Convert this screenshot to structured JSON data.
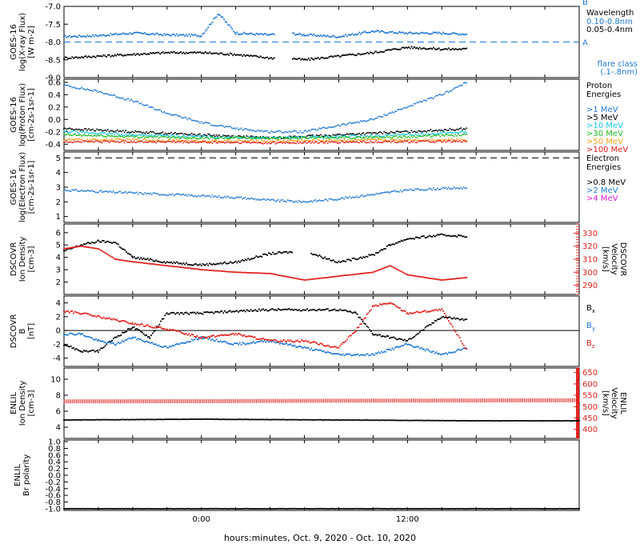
{
  "colors": {
    "black": "#000000",
    "blue": "#1f77d4",
    "cyan": "#18c6e6",
    "green": "#22bb22",
    "orange": "#f0a020",
    "red": "#e0201c",
    "magenta": "#e020e0"
  },
  "xaxis": {
    "title": "hours:minutes, Oct.  9, 2020 - Oct. 10, 2020",
    "tick_labels": [
      "0:00",
      "12:00"
    ],
    "range_hours": [
      -8,
      22
    ],
    "label_hours": [
      0,
      12
    ]
  },
  "chart_data": [
    {
      "type": "line",
      "id": "xray",
      "ylabel": [
        "GOES-16",
        "log(X-ray Flux)",
        "[W m-2]"
      ],
      "ylim": [
        -9.0,
        -7.0
      ],
      "yticks": [
        -9.0,
        -8.5,
        -8.0,
        -7.5,
        -7.0
      ],
      "ytick_labels": [
        "-9.0",
        "-8.5",
        "-8.0",
        "-7.5",
        "-7.0"
      ],
      "right_markers": {
        "B": -7.0,
        "A": -8.0
      },
      "legend_title": "Wavelength",
      "legend": [
        {
          "label": "0.10-0.8nm",
          "color": "#1f77d4"
        },
        {
          "label": "0.05-0.4nm",
          "color": "#000000"
        }
      ],
      "note": [
        "flare class",
        "(.1-.8nm)"
      ],
      "series": [
        {
          "name": "0.10-0.8nm",
          "color": "#1f77d4",
          "x": [
            -8,
            -6,
            -4,
            -2,
            0,
            1,
            2,
            4,
            5,
            6,
            8,
            10,
            12,
            14,
            15.5
          ],
          "y": [
            -7.85,
            -7.82,
            -7.75,
            -7.8,
            -7.82,
            -7.2,
            -7.75,
            -7.8,
            -7.75,
            -7.8,
            -7.85,
            -7.7,
            -7.75,
            -7.75,
            -7.78
          ]
        },
        {
          "name": "0.05-0.4nm",
          "color": "#000000",
          "x": [
            -8,
            -6,
            -4,
            -2,
            0,
            2,
            4,
            5,
            6,
            8,
            10,
            12,
            14,
            15.5
          ],
          "y": [
            -8.45,
            -8.4,
            -8.35,
            -8.3,
            -8.3,
            -8.35,
            -8.45,
            -8.45,
            -8.5,
            -8.4,
            -8.3,
            -8.15,
            -8.2,
            -8.2
          ]
        }
      ]
    },
    {
      "type": "scatter",
      "id": "proton",
      "ylabel": [
        "GOES-16",
        "log(Proton Flux)",
        "[cm-2s-1sr-1]"
      ],
      "ylim": [
        -0.5,
        0.65
      ],
      "yticks": [
        -0.4,
        -0.2,
        0.0,
        0.2,
        0.4,
        0.6
      ],
      "ytick_labels": [
        "-0.4",
        "-0.2",
        "0.0",
        "0.2",
        "0.4",
        "0.6"
      ],
      "legend_title": [
        "Proton",
        "Energies"
      ],
      "legend": [
        {
          "label": ">1 MeV",
          "color": "#1f77d4"
        },
        {
          "label": ">5 MeV",
          "color": "#000000"
        },
        {
          "label": ">10 MeV",
          "color": "#18c6e6"
        },
        {
          "label": ">30 MeV",
          "color": "#22bb22"
        },
        {
          "label": ">50 MeV",
          "color": "#f0a020"
        },
        {
          "label": ">100 MeV",
          "color": "#e0201c"
        }
      ],
      "series": [
        {
          "name": ">1 MeV",
          "color": "#1f77d4",
          "x": [
            -8,
            -6,
            -4,
            -2,
            0,
            2,
            4,
            6,
            8,
            10,
            12,
            14,
            15.5
          ],
          "y": [
            0.55,
            0.45,
            0.3,
            0.1,
            -0.05,
            -0.15,
            -0.2,
            -0.2,
            -0.1,
            0.0,
            0.2,
            0.4,
            0.6
          ]
        },
        {
          "name": ">5 MeV",
          "color": "#000000",
          "x": [
            -8,
            -4,
            0,
            4,
            8,
            12,
            15.5
          ],
          "y": [
            -0.15,
            -0.2,
            -0.25,
            -0.3,
            -0.25,
            -0.2,
            -0.15
          ]
        },
        {
          "name": ">10 MeV",
          "color": "#18c6e6",
          "x": [
            -8,
            -4,
            0,
            4,
            8,
            12,
            15.5
          ],
          "y": [
            -0.2,
            -0.25,
            -0.28,
            -0.3,
            -0.28,
            -0.25,
            -0.2
          ]
        },
        {
          "name": ">30 MeV",
          "color": "#22bb22",
          "x": [
            -8,
            -4,
            0,
            4,
            8,
            12,
            15.5
          ],
          "y": [
            -0.25,
            -0.28,
            -0.3,
            -0.3,
            -0.3,
            -0.28,
            -0.25
          ]
        },
        {
          "name": ">50 MeV",
          "color": "#f0a020",
          "x": [
            -8,
            -4,
            0,
            4,
            8,
            12,
            15.5
          ],
          "y": [
            -0.33,
            -0.33,
            -0.35,
            -0.35,
            -0.34,
            -0.33,
            -0.33
          ]
        },
        {
          "name": ">100 MeV",
          "color": "#e0201c",
          "x": [
            -8,
            -4,
            0,
            4,
            8,
            12,
            15.5
          ],
          "y": [
            -0.36,
            -0.36,
            -0.37,
            -0.38,
            -0.37,
            -0.36,
            -0.36
          ]
        }
      ]
    },
    {
      "type": "scatter",
      "id": "electron",
      "ylabel": [
        "GOES-16",
        "log(Electron Flux)",
        "[cm-2s-1sr-1]"
      ],
      "ylim": [
        0.6,
        5.4
      ],
      "yticks": [
        1,
        2,
        3,
        4,
        5
      ],
      "ytick_labels": [
        "1",
        "2",
        "3",
        "4",
        "5"
      ],
      "threshold": 5.0,
      "legend_title": [
        "Electron",
        "Energies"
      ],
      "legend": [
        {
          "label": ">0.8 MeV",
          "color": "#000000"
        },
        {
          "label": ">2 MeV",
          "color": "#1f77d4"
        },
        {
          "label": ">4 MeV",
          "color": "#e020e0"
        }
      ],
      "series": [
        {
          "name": ">2 MeV",
          "color": "#1f77d4",
          "x": [
            -8,
            -6,
            -4,
            -2,
            0,
            2,
            4,
            6,
            8,
            10,
            12,
            14,
            15.5
          ],
          "y": [
            2.8,
            2.7,
            2.6,
            2.5,
            2.4,
            2.3,
            2.1,
            2.0,
            2.2,
            2.5,
            2.8,
            2.9,
            2.95
          ]
        }
      ]
    },
    {
      "type": "line",
      "id": "dscovr_density",
      "ylabel": [
        "DSCOVR",
        "Ion Density",
        "[cm-3]"
      ],
      "ylim": [
        1,
        6.7
      ],
      "yticks": [
        2,
        3,
        4,
        5,
        6
      ],
      "ytick_labels": [
        "2",
        "3",
        "4",
        "5",
        "6"
      ],
      "y2label": [
        "DSCOVR",
        "Velocity",
        "[km/s]"
      ],
      "y2lim": [
        283,
        337
      ],
      "y2ticks": [
        290,
        300,
        310,
        320,
        330
      ],
      "y2tick_labels": [
        "290",
        "300",
        "310",
        "320",
        "330"
      ],
      "series": [
        {
          "name": "Density",
          "color": "#000000",
          "x": [
            -8,
            -7,
            -6,
            -5,
            -4,
            -2,
            0,
            2,
            4,
            6,
            8,
            10,
            11,
            12,
            14,
            15.5
          ],
          "y": [
            4.5,
            5.0,
            5.3,
            5.2,
            4.0,
            3.6,
            3.4,
            3.6,
            4.3,
            4.5,
            3.6,
            4.2,
            5.0,
            5.5,
            5.8,
            5.7
          ]
        },
        {
          "name": "Velocity",
          "color": "#e0201c",
          "axis": "right",
          "x": [
            -8,
            -7,
            -6,
            -5,
            -4,
            -2,
            0,
            2,
            4,
            6,
            8,
            10,
            11,
            12,
            14,
            15.5
          ],
          "y": [
            318,
            320,
            318,
            310,
            308,
            305,
            302,
            300,
            299,
            294,
            297,
            300,
            305,
            298,
            294,
            296
          ]
        }
      ]
    },
    {
      "type": "line",
      "id": "dscovr_b",
      "ylabel": [
        "DSCOVR",
        "B",
        "[nT]"
      ],
      "ylim": [
        -5.2,
        5.0
      ],
      "yticks": [
        -4,
        -2,
        0,
        2,
        4
      ],
      "ytick_labels": [
        "-4",
        "-2",
        "0",
        "2",
        "4"
      ],
      "legend": [
        {
          "label": "Bx",
          "base": "B",
          "sub": "x",
          "color": "#000000"
        },
        {
          "label": "By",
          "base": "B",
          "sub": "y",
          "color": "#1f77d4"
        },
        {
          "label": "Bz",
          "base": "B",
          "sub": "z",
          "color": "#e0201c"
        }
      ],
      "series": [
        {
          "name": "Bx",
          "color": "#000000",
          "x": [
            -8,
            -7,
            -6,
            -5,
            -4,
            -3,
            -2,
            0,
            2,
            4,
            6,
            8,
            9,
            10,
            12,
            14,
            15.5
          ],
          "y": [
            -2,
            -3,
            -3,
            -1,
            0.5,
            -1,
            2.5,
            2.5,
            2.8,
            3.0,
            3.0,
            3.0,
            2.5,
            -0.5,
            -1.5,
            2.0,
            1.5
          ]
        },
        {
          "name": "By",
          "color": "#1f77d4",
          "x": [
            -8,
            -7,
            -6,
            -5,
            -4,
            -2,
            0,
            2,
            4,
            6,
            8,
            10,
            12,
            14,
            15.5
          ],
          "y": [
            -0.5,
            -0.5,
            -1.5,
            -2,
            -1.0,
            -2.5,
            -1.0,
            -2.0,
            -1.5,
            -2.5,
            -3.5,
            -3.5,
            -2.0,
            -3.5,
            -2.5
          ]
        },
        {
          "name": "Bz",
          "color": "#e0201c",
          "x": [
            -8,
            -7,
            -6,
            -5,
            -4,
            -2,
            0,
            2,
            4,
            6,
            8,
            9,
            10,
            11,
            12,
            14,
            15.5
          ],
          "y": [
            2.8,
            2.5,
            2.0,
            1.5,
            1.0,
            0.2,
            -1.0,
            -0.5,
            -1.5,
            -1.5,
            -2.5,
            0.0,
            3.5,
            4.0,
            2.5,
            3.0,
            -3.0
          ]
        }
      ]
    },
    {
      "type": "line",
      "id": "enlil_density",
      "ylabel": [
        "ENLIL",
        "Ion Density",
        "[cm-3]"
      ],
      "ylim": [
        2.6,
        11.4
      ],
      "yticks": [
        4,
        6,
        8,
        10
      ],
      "ytick_labels": [
        "4",
        "6",
        "8",
        "10"
      ],
      "y2label": [
        "ENLIL",
        "Velocity",
        "[km/s]"
      ],
      "y2lim": [
        360,
        670
      ],
      "y2ticks": [
        400,
        450,
        500,
        550,
        600,
        650
      ],
      "y2tick_labels": [
        "400",
        "450",
        "500",
        "550",
        "600",
        "650"
      ],
      "series": [
        {
          "name": "Density",
          "color": "#000000",
          "x": [
            -8,
            0,
            8,
            16,
            22
          ],
          "y": [
            4.9,
            5.0,
            4.9,
            4.8,
            4.8
          ]
        },
        {
          "name": "Velocity",
          "color": "#e0201c",
          "axis": "right",
          "x": [
            -8,
            0,
            8,
            16,
            22
          ],
          "y": [
            523,
            524,
            526,
            527,
            528
          ]
        }
      ]
    },
    {
      "type": "line",
      "id": "enlil_polarity",
      "ylabel": [
        "ENLIL",
        "Br polarity"
      ],
      "ylim": [
        -1.05,
        1.05
      ],
      "yticks": [
        -1.0,
        -0.8,
        -0.6,
        -0.4,
        -0.2,
        0.0,
        0.2,
        0.4,
        0.6,
        0.8,
        1.0
      ],
      "ytick_labels": [
        "-1.0",
        "-0.8",
        "-0.6",
        "-0.4",
        "-0.2",
        "0.0",
        "0.2",
        "0.4",
        "0.6",
        "0.8",
        "1.0"
      ],
      "series": [
        {
          "name": "Br polarity",
          "color": "#000000",
          "x": [
            -8,
            22
          ],
          "y": [
            -1.0,
            -1.0
          ]
        }
      ]
    }
  ]
}
